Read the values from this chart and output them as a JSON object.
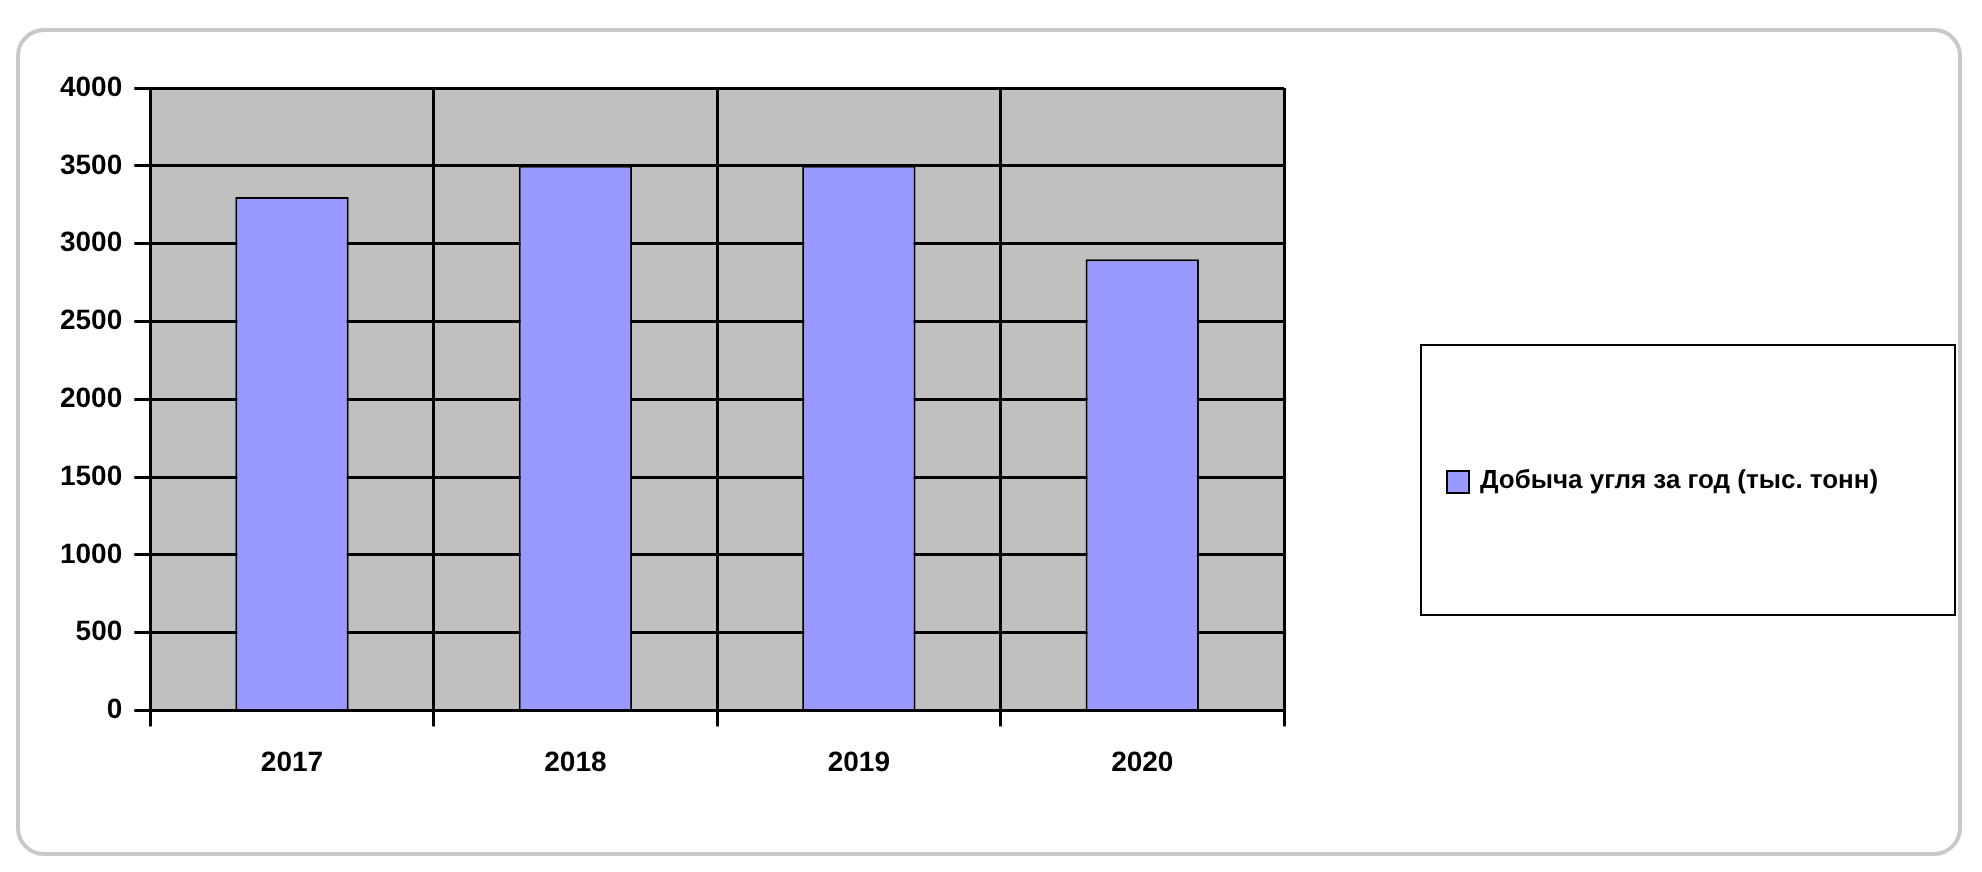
{
  "chart_data": {
    "type": "bar",
    "categories": [
      "2017",
      "2018",
      "2019",
      "2020"
    ],
    "series": [
      {
        "name": "Добыча угля за год (тыс. тонн)",
        "color": "#9999ff",
        "values": [
          3300,
          3500,
          3500,
          2900
        ]
      }
    ],
    "ylim": [
      0,
      4000
    ],
    "yticks": [
      0,
      500,
      1000,
      1500,
      2000,
      2500,
      3000,
      3500,
      4000
    ],
    "grid": true,
    "legend": "right"
  }
}
